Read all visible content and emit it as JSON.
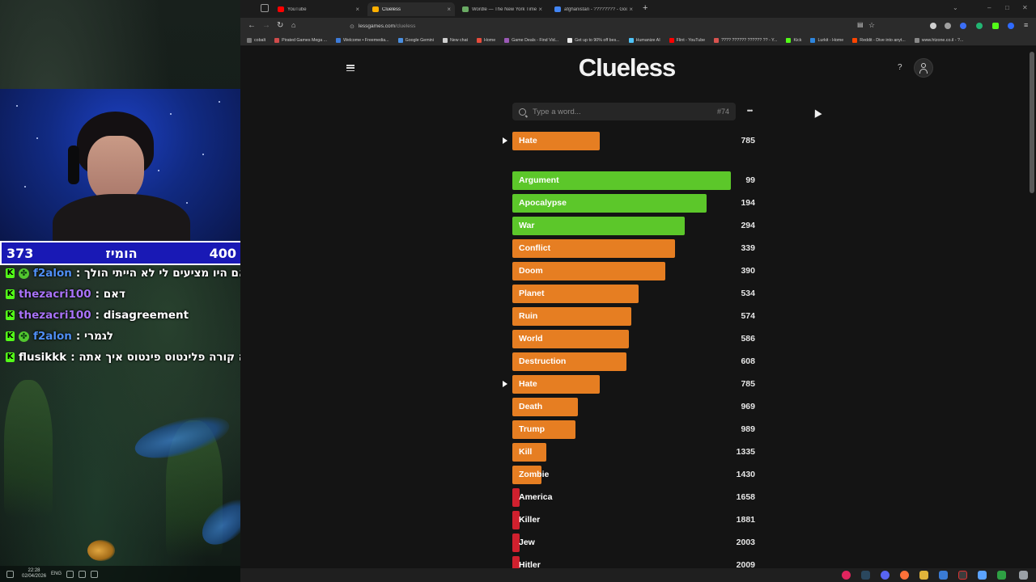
{
  "stream_overlay": {
    "score": {
      "left": "373",
      "label": "הומיז",
      "right": "400"
    },
    "chat": [
      {
        "user": "f2alon",
        "message": ": גם אם היו מציעים לי לא הייתי הולך",
        "user_color": "#4f8ff5",
        "sub_badge": true
      },
      {
        "user": "thezacri100",
        "message": ": דאם",
        "user_color": "#a873f7",
        "sub_badge": false
      },
      {
        "user": "thezacri100",
        "message": ": disagreement",
        "user_color": "#a873f7",
        "sub_badge": false
      },
      {
        "user": "f2alon",
        "message": ": לגמרי",
        "user_color": "#4f8ff5",
        "sub_badge": true
      },
      {
        "user": "flusikkk",
        "message": ": מה קורה פלינטוס פינטוס איך אתה?",
        "user_color": "#ffffff",
        "sub_badge": false
      }
    ],
    "taskbar": {
      "lang": "ENG",
      "time": "22:28",
      "date": "02/04/2026"
    }
  },
  "browser": {
    "tabs": [
      {
        "label": "YouTube",
        "color": "#ff0000",
        "active": false
      },
      {
        "label": "Clueless",
        "color": "#ffb000",
        "active": true
      },
      {
        "label": "Wordle — The New York Times",
        "color": "#6aaa64",
        "active": false
      },
      {
        "label": "afghanistan - ???????? - Google",
        "color": "#4285f4",
        "active": false
      }
    ],
    "url": {
      "domain": "lessgames.com",
      "path": "/clueless"
    },
    "bookmarks": [
      "cobalt",
      "Pirated Games Mega ...",
      "Welcome • Freemedia...",
      "Google Gemini",
      "New chat",
      "Home",
      "Game Deals - Find Vid...",
      "Get up to 90% off bes...",
      "Humanize AI",
      "Flint - YouTube",
      "???? ?????? ?????? ?? - Y...",
      "Kick",
      "Lurkit - Home",
      "Reddit - Dive into anyt...",
      "www.htzone.co.il - ?..."
    ]
  },
  "game": {
    "title": "Clueless",
    "search": {
      "placeholder": "Type a word...",
      "game_number": "#74"
    },
    "latest_guess": {
      "word": "Hate",
      "rank": "785",
      "color": "#e67e22"
    },
    "guesses": [
      {
        "word": "Argument",
        "rank": "99",
        "color": "#5cc72a",
        "fill": 0.9
      },
      {
        "word": "Apocalypse",
        "rank": "194",
        "color": "#5cc72a",
        "fill": 0.8
      },
      {
        "word": "War",
        "rank": "294",
        "color": "#5cc72a",
        "fill": 0.71
      },
      {
        "word": "Conflict",
        "rank": "339",
        "color": "#e67e22",
        "fill": 0.67
      },
      {
        "word": "Doom",
        "rank": "390",
        "color": "#e67e22",
        "fill": 0.63
      },
      {
        "word": "Planet",
        "rank": "534",
        "color": "#e67e22",
        "fill": 0.52
      },
      {
        "word": "Ruin",
        "rank": "574",
        "color": "#e67e22",
        "fill": 0.49
      },
      {
        "word": "World",
        "rank": "586",
        "color": "#e67e22",
        "fill": 0.48
      },
      {
        "word": "Destruction",
        "rank": "608",
        "color": "#e67e22",
        "fill": 0.47
      },
      {
        "word": "Hate",
        "rank": "785",
        "color": "#e67e22",
        "fill": 0.36,
        "marked": true
      },
      {
        "word": "Death",
        "rank": "969",
        "color": "#e67e22",
        "fill": 0.27
      },
      {
        "word": "Trump",
        "rank": "989",
        "color": "#e67e22",
        "fill": 0.26
      },
      {
        "word": "Kill",
        "rank": "1335",
        "color": "#e67e22",
        "fill": 0.14
      },
      {
        "word": "Zombie",
        "rank": "1430",
        "color": "#e67e22",
        "fill": 0.12
      },
      {
        "word": "America",
        "rank": "1658",
        "color": "#d0202e",
        "fill": 0.03
      },
      {
        "word": "Killer",
        "rank": "1881",
        "color": "#d0202e",
        "fill": 0.03
      },
      {
        "word": "Jew",
        "rank": "2003",
        "color": "#d0202e",
        "fill": 0.03
      },
      {
        "word": "Hitler",
        "rank": "2009",
        "color": "#d0202e",
        "fill": 0.03
      }
    ]
  }
}
